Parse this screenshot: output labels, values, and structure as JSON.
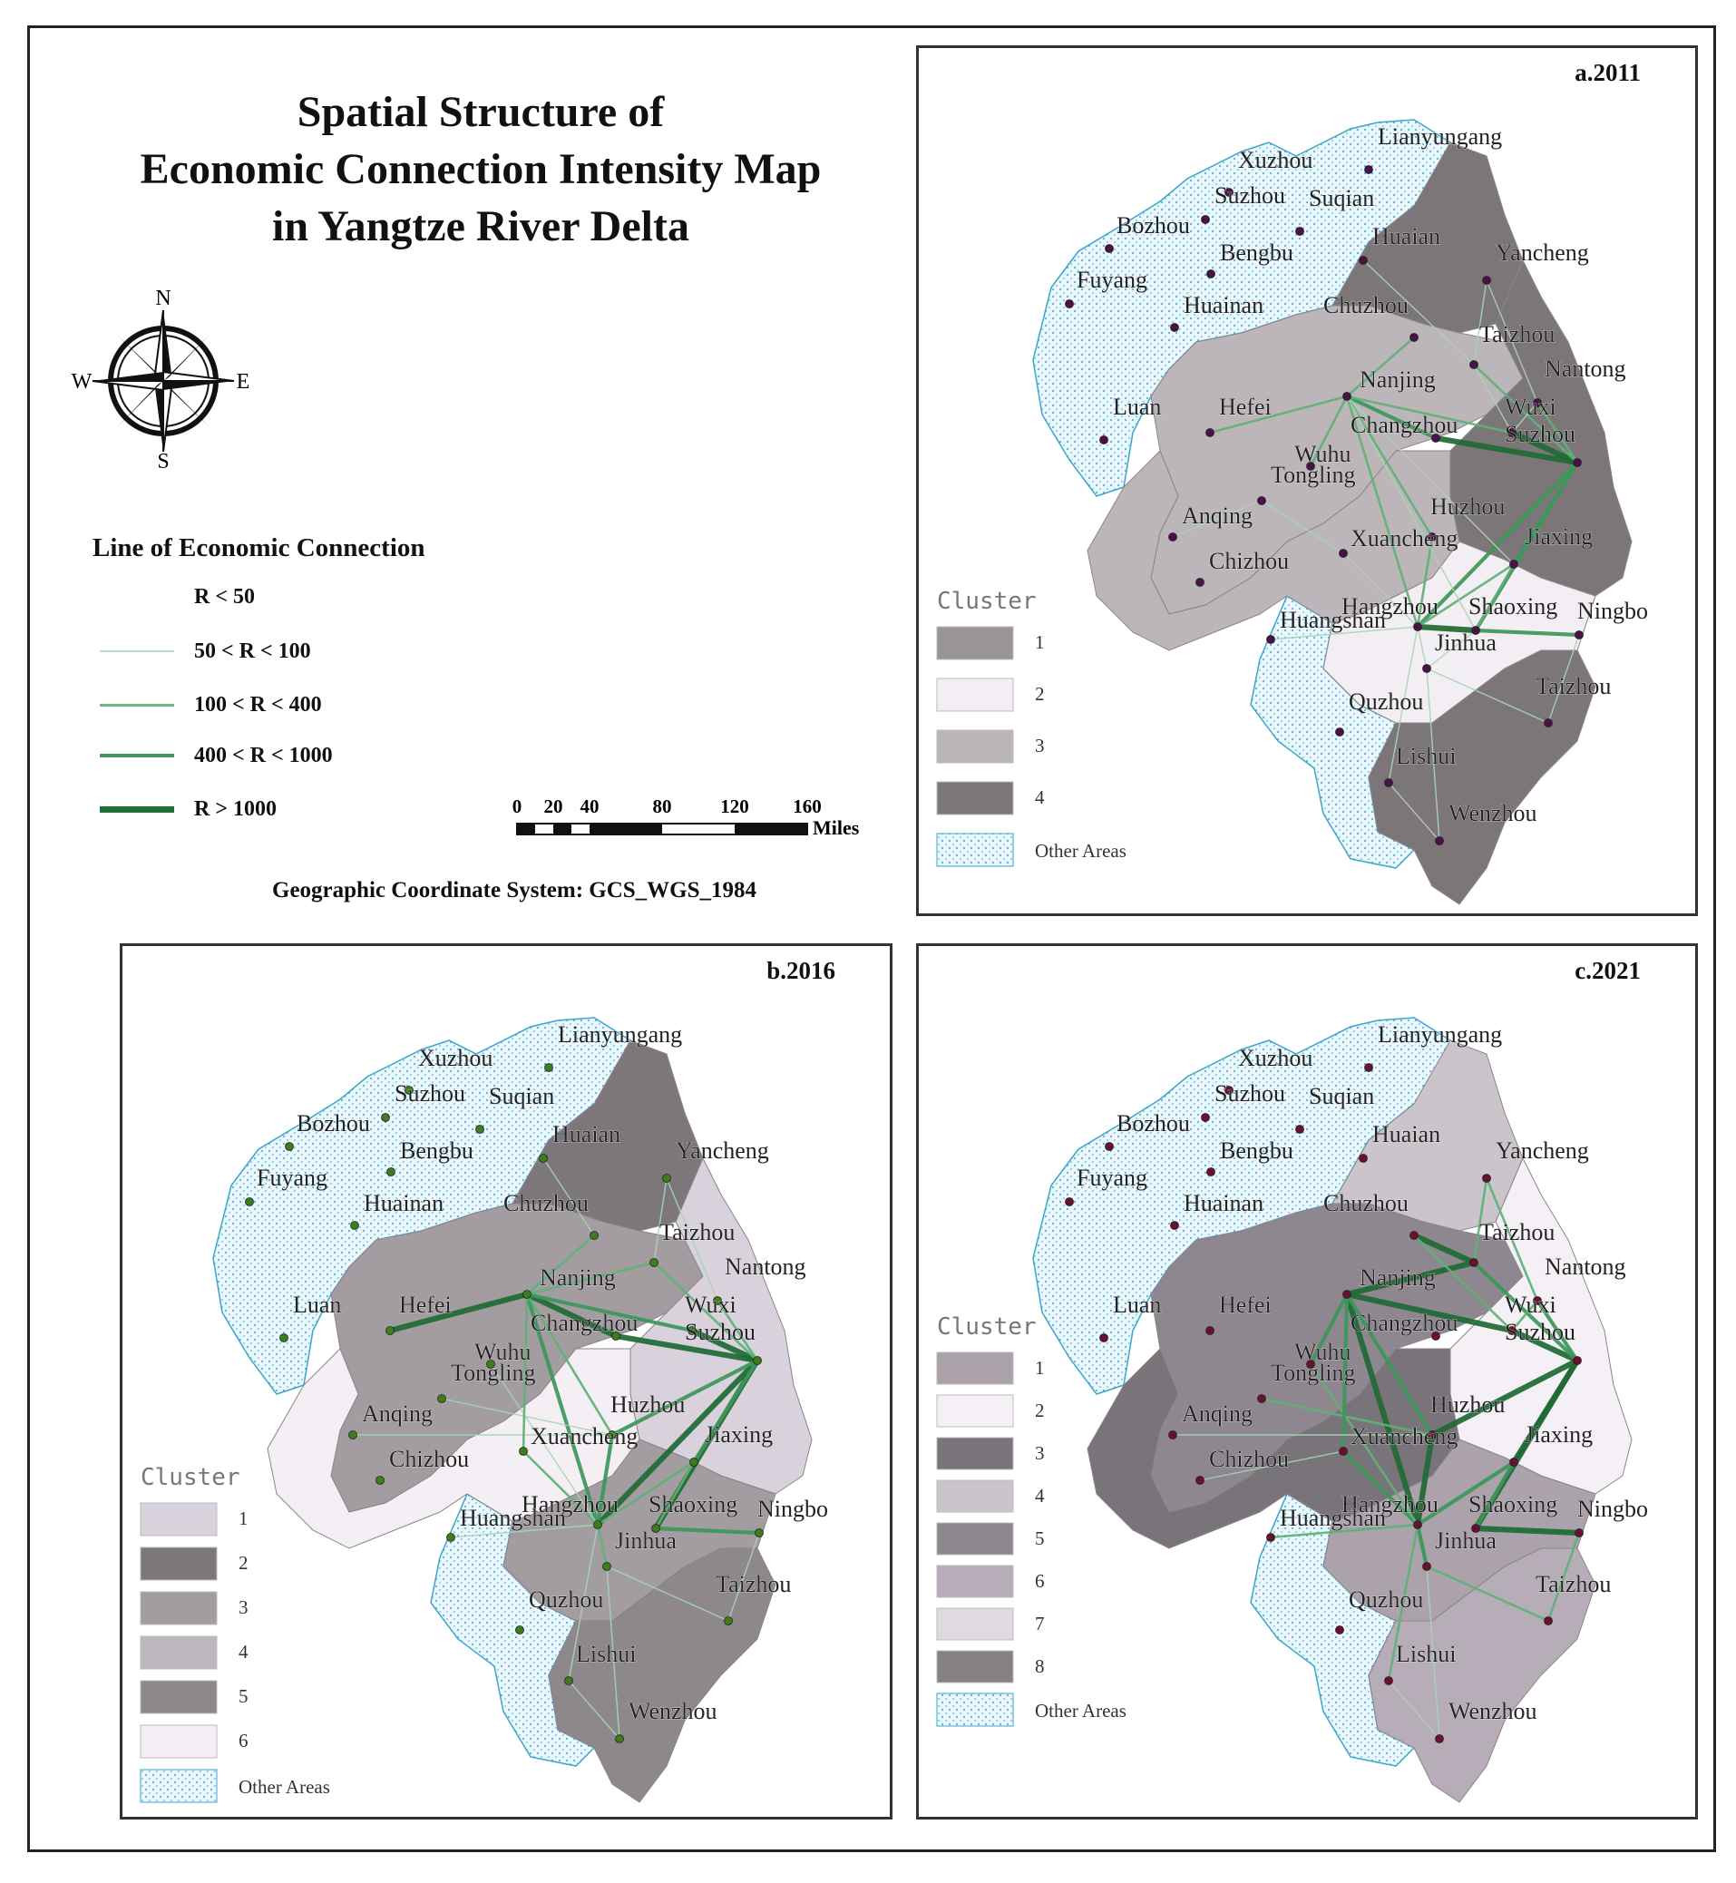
{
  "title": {
    "line1": "Spatial Structure of",
    "line2": "Economic Connection Intensity Map",
    "line3": "in Yangtze River Delta"
  },
  "compass": {
    "n": "N",
    "s": "S",
    "e": "E",
    "w": "W"
  },
  "legend": {
    "title": "Line of Economic Connection",
    "items": [
      {
        "label": "R < 50",
        "width": 0,
        "color": "#ffffff"
      },
      {
        "label": "50 < R < 100",
        "width": 1.5,
        "color": "#b7dcc0"
      },
      {
        "label": "100 < R < 400",
        "width": 3,
        "color": "#6cb882"
      },
      {
        "label": "400 < R < 1000",
        "width": 4.5,
        "color": "#3f9a5a"
      },
      {
        "label": "R > 1000",
        "width": 7,
        "color": "#1f6e35"
      }
    ]
  },
  "scale_bar": {
    "ticks": [
      "0",
      "20",
      "40",
      "80",
      "120",
      "160"
    ],
    "unit": "Miles"
  },
  "coordinate_system": "Geographic Coordinate System: GCS_WGS_1984",
  "colors": {
    "other_areas_fill": "#eaf7fc",
    "other_areas_stroke": "#3aa6cc",
    "line_color": "#2e8b4c",
    "node_2011": "#4a1248",
    "node_2016": "#3d7d1c",
    "node_2021": "#6a1030"
  },
  "cities": [
    "Lianyungang",
    "Xuzhou",
    "Suzhou",
    "Suqian",
    "Bozhou",
    "Huaian",
    "Yancheng",
    "Bengbu",
    "Fuyang",
    "Huainan",
    "Chuzhou",
    "Taizhou",
    "Nantong",
    "Nanjing",
    "Luan",
    "Hefei",
    "Wuxi",
    "Changzhou",
    "Suzhou",
    "Wuhu",
    "Tongling",
    "Huzhou",
    "Anqing",
    "Xuancheng",
    "Jiaxing",
    "Chizhou",
    "Hangzhou",
    "Shaoxing",
    "Ningbo",
    "Huangshan",
    "Jinhua",
    "Taizhou",
    "Quzhou",
    "Lishui",
    "Wenzhou"
  ],
  "panels": [
    {
      "title": "a.2011",
      "cluster_title": "Cluster",
      "clusters": [
        {
          "label": "1",
          "color": "#9a9498"
        },
        {
          "label": "2",
          "color": "#f3eef3"
        },
        {
          "label": "3",
          "color": "#bcb6ba"
        },
        {
          "label": "4",
          "color": "#7c7679"
        }
      ],
      "other_areas": "Other Areas"
    },
    {
      "title": "b.2016",
      "cluster_title": "Cluster",
      "clusters": [
        {
          "label": "1",
          "color": "#d9d1dc"
        },
        {
          "label": "2",
          "color": "#7d777b"
        },
        {
          "label": "3",
          "color": "#a39da1"
        },
        {
          "label": "4",
          "color": "#bdb7bd"
        },
        {
          "label": "5",
          "color": "#8e888c"
        },
        {
          "label": "6",
          "color": "#f4eff4"
        }
      ],
      "other_areas": "Other Areas"
    },
    {
      "title": "c.2021",
      "cluster_title": "Cluster",
      "clusters": [
        {
          "label": "1",
          "color": "#aba2ab"
        },
        {
          "label": "2",
          "color": "#f5f0f5"
        },
        {
          "label": "3",
          "color": "#79737a"
        },
        {
          "label": "4",
          "color": "#cbc5cb"
        },
        {
          "label": "5",
          "color": "#8e8790"
        },
        {
          "label": "6",
          "color": "#b7adb8"
        },
        {
          "label": "7",
          "color": "#e1d9e2"
        },
        {
          "label": "8",
          "color": "#868085"
        }
      ],
      "other_areas": "Other Areas"
    }
  ]
}
